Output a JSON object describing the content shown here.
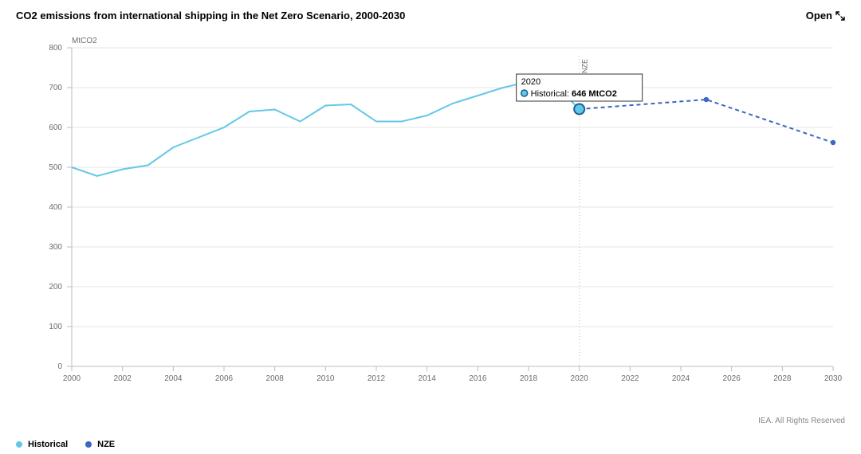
{
  "header": {
    "title": "CO2 emissions from international shipping in the Net Zero Scenario, 2000-2030",
    "open_label": "Open"
  },
  "chart": {
    "type": "line",
    "y_axis_label": "MtCO2",
    "background_color": "#ffffff",
    "grid_color": "#e6e6e6",
    "axis_color": "#bdbdbd",
    "label_color": "#6b6b6b",
    "label_fontsize": 10,
    "x": {
      "min": 2000,
      "max": 2030,
      "tick_step": 2,
      "ticks": [
        2000,
        2002,
        2004,
        2006,
        2008,
        2010,
        2012,
        2014,
        2016,
        2018,
        2020,
        2022,
        2024,
        2026,
        2028,
        2030
      ]
    },
    "y": {
      "min": 0,
      "max": 800,
      "tick_step": 100,
      "ticks": [
        0,
        100,
        200,
        300,
        400,
        500,
        600,
        700,
        800
      ]
    },
    "reference_line": {
      "x": 2020,
      "label": "NZE"
    },
    "series": [
      {
        "id": "historical",
        "label": "Historical",
        "color": "#63c8e7",
        "line_width": 2,
        "dash": null,
        "marker": {
          "style": "circle",
          "size": 5,
          "at_points": [
            2020
          ],
          "fill": "#63c8e7",
          "stroke": "#1c5f8e",
          "stroke_width": 2
        },
        "points": [
          [
            2000,
            500
          ],
          [
            2001,
            478
          ],
          [
            2002,
            495
          ],
          [
            2003,
            505
          ],
          [
            2004,
            550
          ],
          [
            2005,
            575
          ],
          [
            2006,
            600
          ],
          [
            2007,
            640
          ],
          [
            2008,
            645
          ],
          [
            2009,
            615
          ],
          [
            2010,
            655
          ],
          [
            2011,
            658
          ],
          [
            2012,
            615
          ],
          [
            2013,
            615
          ],
          [
            2014,
            630
          ],
          [
            2015,
            660
          ],
          [
            2016,
            680
          ],
          [
            2017,
            700
          ],
          [
            2018,
            715
          ],
          [
            2019,
            710
          ],
          [
            2020,
            646
          ]
        ]
      },
      {
        "id": "nze",
        "label": "NZE",
        "color": "#3a66c4",
        "line_width": 2,
        "dash": "5 4",
        "marker": {
          "style": "circle",
          "size": 3.2,
          "at_points": [
            2025,
            2030
          ],
          "fill": "#3a66c4",
          "stroke": "#3a66c4",
          "stroke_width": 0
        },
        "points": [
          [
            2020,
            646
          ],
          [
            2025,
            670
          ],
          [
            2030,
            562
          ]
        ]
      }
    ],
    "tooltip": {
      "x_value": "2020",
      "dot_color": "#63c8e7",
      "dot_stroke": "#1c5f8e",
      "series_label": "Historical",
      "value_text": "646 MtCO2",
      "box_stroke": "#333333",
      "box_fill": "#ffffff"
    }
  },
  "legend": {
    "items": [
      {
        "label": "Historical",
        "color": "#63c8e7"
      },
      {
        "label": "NZE",
        "color": "#3a66c4"
      }
    ]
  },
  "credit": "IEA. All Rights Reserved"
}
